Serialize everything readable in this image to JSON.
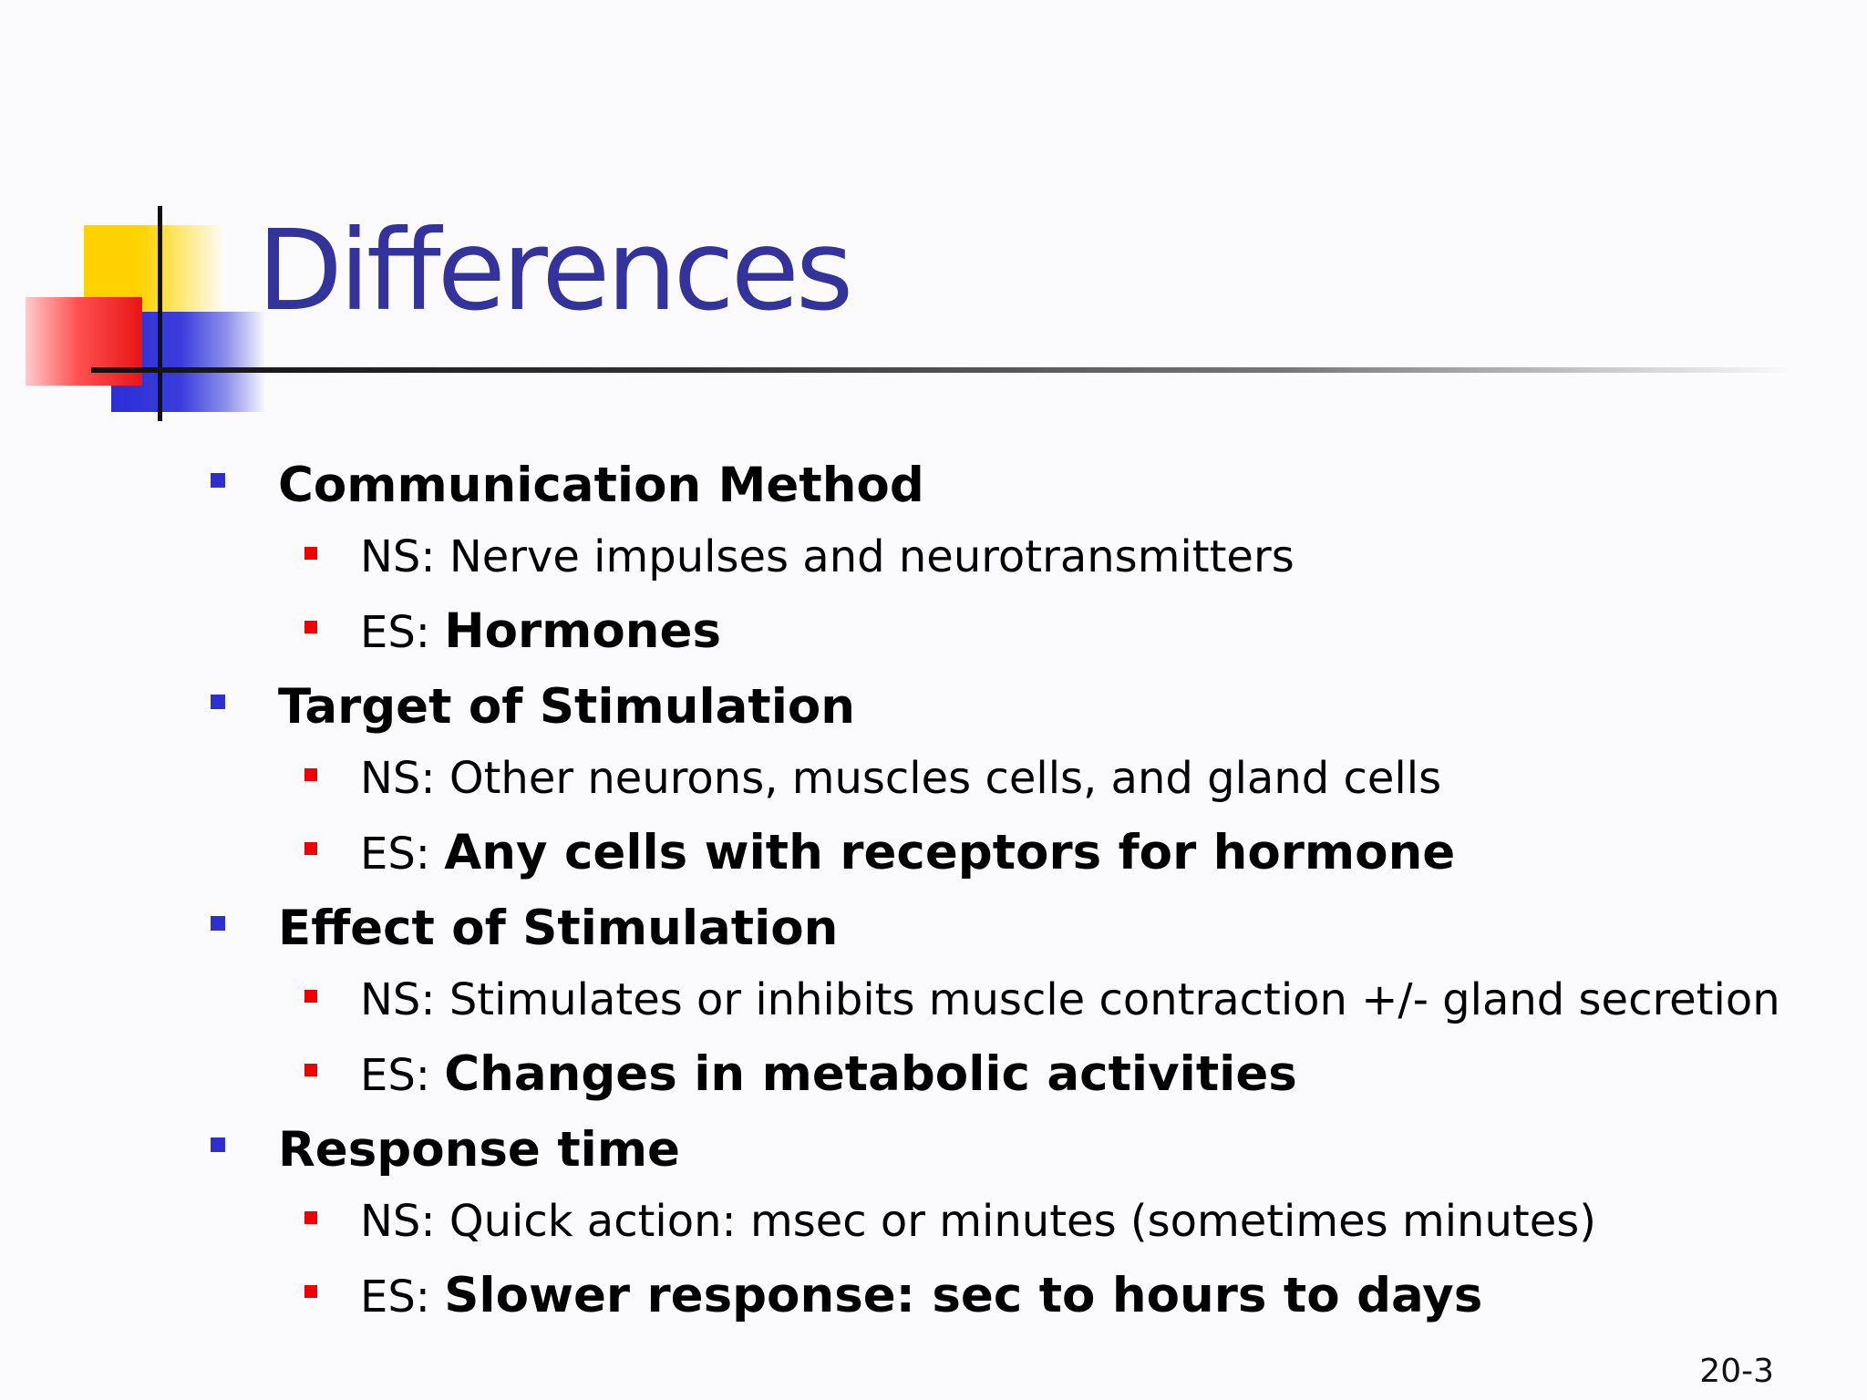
{
  "slide": {
    "title": "Differences",
    "page_number": "20-3",
    "colors": {
      "title": "#33339b",
      "level1_bullet": "#2f2fd0",
      "level2_bullet": "#f00000",
      "logo_yellow": "#ffd200",
      "logo_red": "#e81515",
      "logo_blue": "#2c2fd6"
    },
    "sections": [
      {
        "heading": "Communication Method",
        "items": [
          {
            "prefix": "NS: ",
            "text": "Nerve impulses and neurotransmitters",
            "emphasis": false
          },
          {
            "prefix": "ES: ",
            "text": "Hormones",
            "emphasis": true
          }
        ]
      },
      {
        "heading": "Target of Stimulation",
        "items": [
          {
            "prefix": "NS: ",
            "text": "Other neurons, muscles cells, and gland cells",
            "emphasis": false
          },
          {
            "prefix": "ES: ",
            "text": "Any cells with receptors for hormone",
            "emphasis": true
          }
        ]
      },
      {
        "heading": "Effect of Stimulation",
        "items": [
          {
            "prefix": "NS: ",
            "text": "Stimulates or inhibits muscle contraction +/- gland secretion",
            "emphasis": false
          },
          {
            "prefix": "ES: ",
            "text": "Changes in metabolic activities",
            "emphasis": true
          }
        ]
      },
      {
        "heading": "Response time",
        "items": [
          {
            "prefix": "NS: ",
            "text": "Quick action: msec or minutes (sometimes minutes)",
            "emphasis": false
          },
          {
            "prefix": "ES: ",
            "text": "Slower response: sec to hours to days",
            "emphasis": true
          }
        ]
      }
    ]
  }
}
